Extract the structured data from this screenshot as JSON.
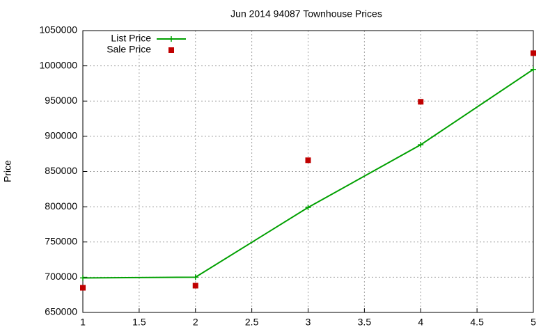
{
  "chart_data": {
    "type": "line",
    "title": "Jun 2014 94087 Townhouse Prices",
    "y_label": "Price",
    "x": [
      1,
      2,
      3,
      4,
      5
    ],
    "series": [
      {
        "name": "List Price",
        "color": "#00a000",
        "style": "linespoints",
        "values": [
          699000,
          700000,
          799000,
          888000,
          995000
        ]
      },
      {
        "name": "Sale Price",
        "color": "#c00000",
        "style": "points",
        "values": [
          685000,
          688000,
          866000,
          949000,
          1018000
        ]
      }
    ],
    "xlim": [
      1,
      5
    ],
    "xticks": [
      1,
      1.5,
      2,
      2.5,
      3,
      3.5,
      4,
      4.5,
      5
    ],
    "ylim": [
      650000,
      1050000
    ],
    "yticks": [
      650000,
      700000,
      750000,
      800000,
      850000,
      900000,
      950000,
      1000000,
      1050000
    ],
    "grid": true,
    "legend": "top-left"
  }
}
